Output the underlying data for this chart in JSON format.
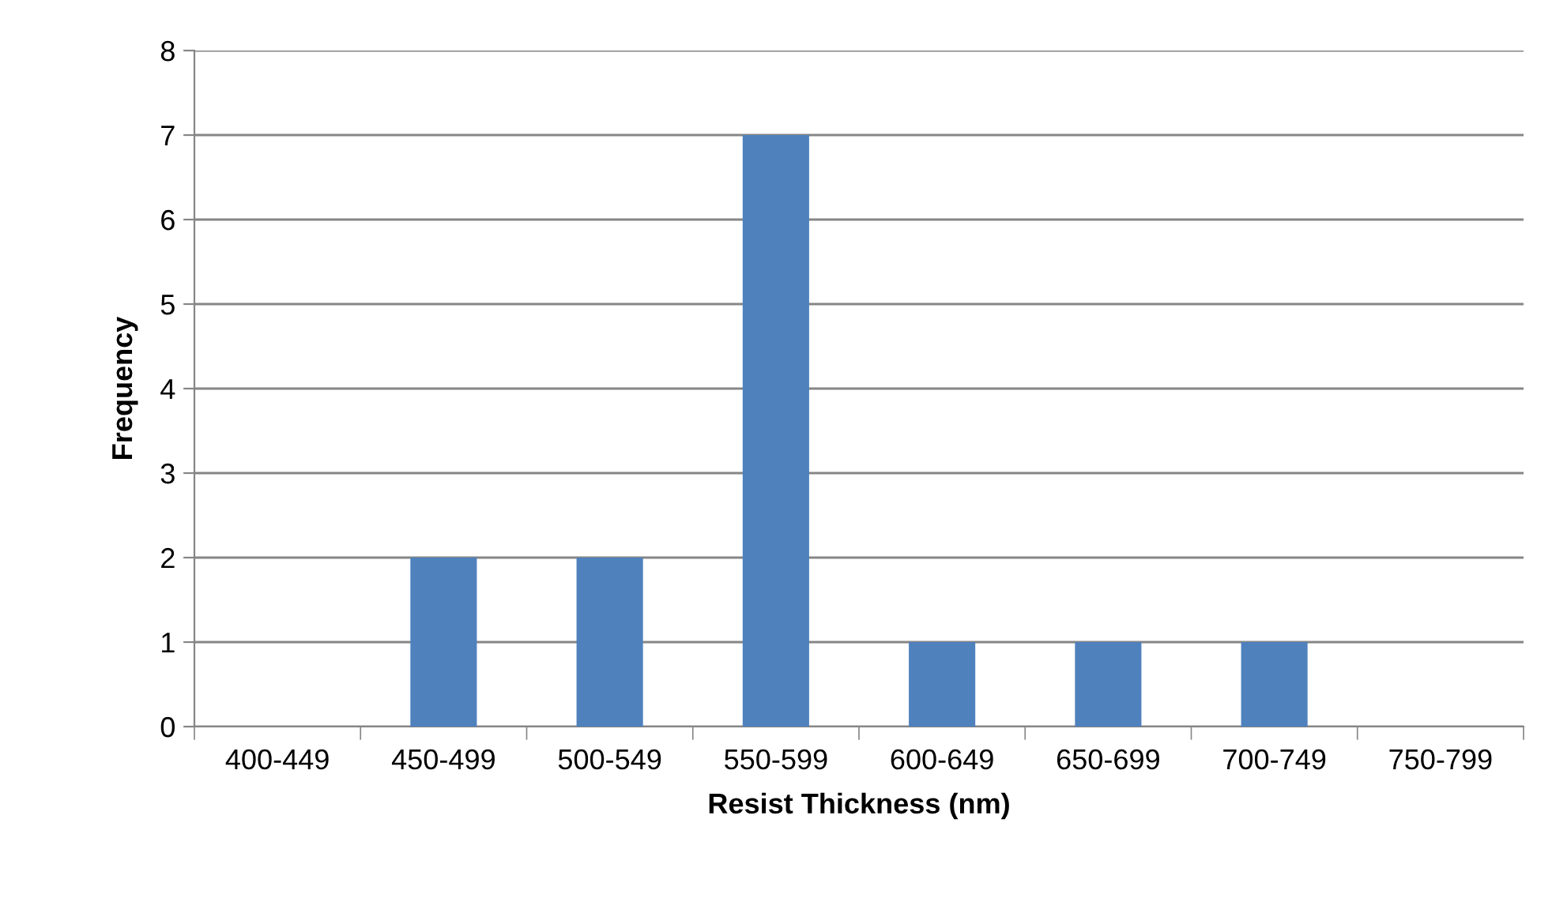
{
  "chart_data": {
    "type": "bar",
    "xlabel": "Resist Thickness (nm)",
    "ylabel": "Frequency",
    "categories": [
      "400-449",
      "450-499",
      "500-549",
      "550-599",
      "600-649",
      "650-699",
      "700-749",
      "750-799"
    ],
    "values": [
      0,
      2,
      2,
      7,
      1,
      1,
      1,
      0
    ],
    "color": "#4f81bd",
    "ylim": [
      0,
      8
    ],
    "yticks": [
      0,
      1,
      2,
      3,
      4,
      5,
      6,
      7,
      8
    ],
    "grid": "y",
    "legend": false
  }
}
